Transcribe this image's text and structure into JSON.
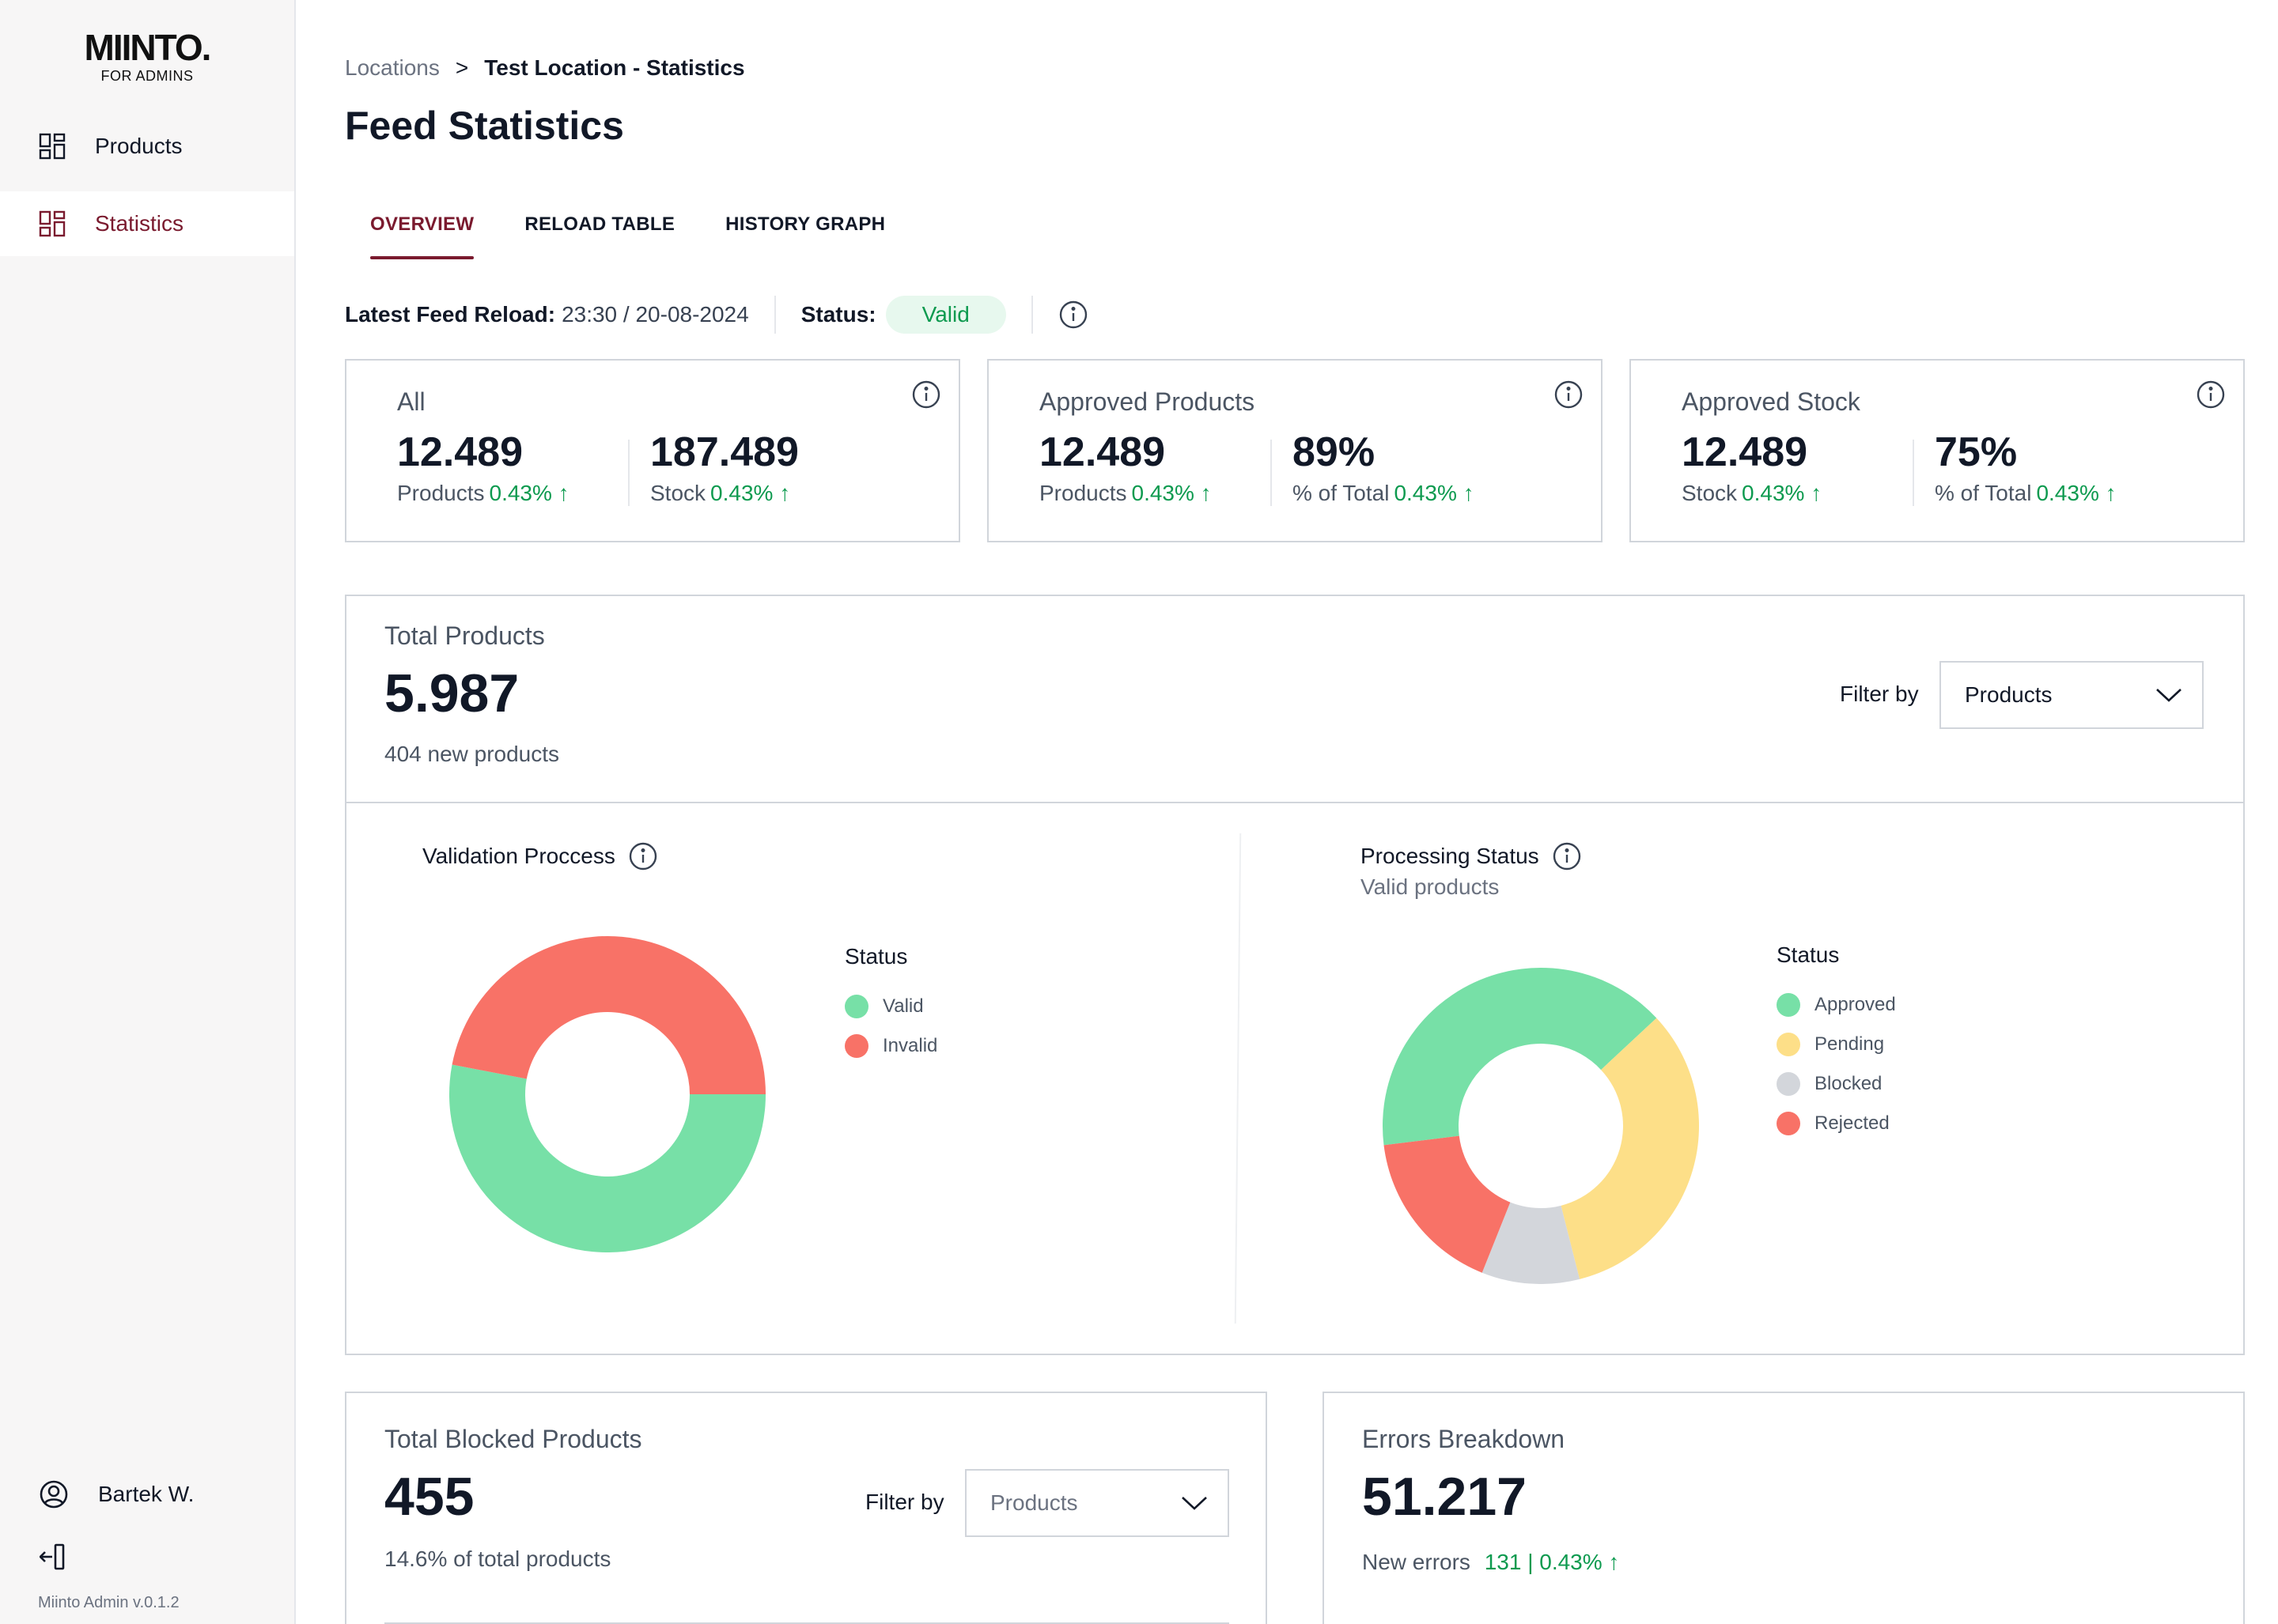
{
  "app": {
    "logo_text": "MIINTO.",
    "logo_sub": "FOR ADMINS",
    "version": "Miinto Admin v.0.1.2"
  },
  "sidebar": {
    "items": [
      {
        "label": "Products",
        "icon": "dashboard-icon",
        "active": false
      },
      {
        "label": "Statistics",
        "icon": "dashboard-icon",
        "active": true
      }
    ],
    "user_name": "Bartek W."
  },
  "breadcrumb": {
    "parent": "Locations",
    "separator": ">",
    "current": "Test Location - Statistics"
  },
  "page_title": "Feed Statistics",
  "tabs": [
    {
      "label": "OVERVIEW",
      "active": true
    },
    {
      "label": "RELOAD TABLE",
      "active": false
    },
    {
      "label": "HISTORY GRAPH",
      "active": false
    }
  ],
  "feed": {
    "reload_label": "Latest Feed Reload:",
    "reload_value": "23:30 / 20-08-2024",
    "status_label": "Status:",
    "status_value": "Valid"
  },
  "kpis": [
    {
      "title": "All",
      "left": {
        "value": "12.489",
        "label": "Products",
        "change": "0.43% ↑"
      },
      "right": {
        "value": "187.489",
        "label": "Stock",
        "change": "0.43% ↑"
      }
    },
    {
      "title": "Approved Products",
      "left": {
        "value": "12.489",
        "label": "Products",
        "change": "0.43% ↑"
      },
      "right": {
        "value": "89%",
        "label": "% of Total",
        "change": "0.43% ↑"
      }
    },
    {
      "title": "Approved Stock",
      "left": {
        "value": "12.489",
        "label": "Stock",
        "change": "0.43% ↑"
      },
      "right": {
        "value": "75%",
        "label": "% of Total",
        "change": "0.43% ↑"
      }
    }
  ],
  "total_products": {
    "title": "Total Products",
    "value": "5.987",
    "sub": "404 new products",
    "filter_label": "Filter by",
    "filter_value": "Products"
  },
  "validation": {
    "title": "Validation Proccess",
    "legend_title": "Status"
  },
  "processing": {
    "title": "Processing Status",
    "subtitle": "Valid products",
    "legend_title": "Status"
  },
  "chart_data": [
    {
      "type": "pie",
      "categories": [
        "Valid",
        "Invalid"
      ],
      "values": [
        53,
        47
      ],
      "colors": [
        "#77e0a7",
        "#f87267"
      ],
      "donut": true
    },
    {
      "type": "pie",
      "categories": [
        "Approved",
        "Pending",
        "Blocked",
        "Rejected"
      ],
      "values": [
        40,
        33,
        10,
        17
      ],
      "colors": [
        "#77e0a7",
        "#fddf88",
        "#d3d6db",
        "#f87267"
      ],
      "donut": true
    }
  ],
  "blocked": {
    "title": "Total Blocked Products",
    "value": "455",
    "sub": "14.6% of total products",
    "filter_label": "Filter by",
    "filter_value": "Products"
  },
  "errors": {
    "title": "Errors Breakdown",
    "value": "51.217",
    "sub_label": "New errors",
    "sub_value": "131 | 0.43% ↑"
  },
  "colors": {
    "accent": "#7a1a2e",
    "positive": "#0d9a4f",
    "valid_pill_bg": "#e7f8ee"
  }
}
